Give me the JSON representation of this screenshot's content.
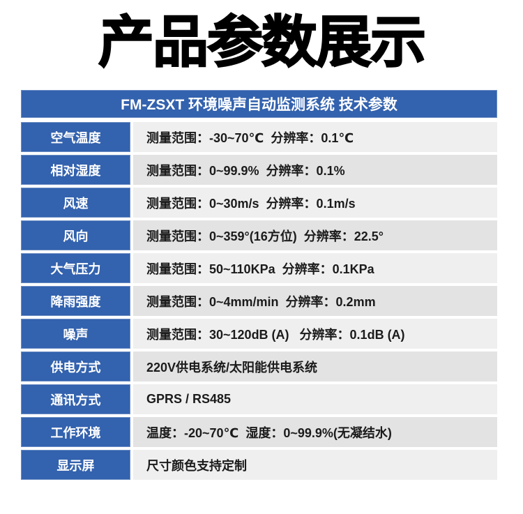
{
  "page": {
    "title": "产品参数展示"
  },
  "table": {
    "header": "FM-ZSXT 环境噪声自动监测系统 技术参数",
    "rows": [
      {
        "label": "空气温度",
        "value": "测量范围：-30~70℃  分辨率：0.1℃"
      },
      {
        "label": "相对湿度",
        "value": "测量范围：0~99.9%  分辨率：0.1%"
      },
      {
        "label": "风速",
        "value": "测量范围：0~30m/s  分辨率：0.1m/s"
      },
      {
        "label": "风向",
        "value": "测量范围：0~359°(16方位)  分辨率：22.5°"
      },
      {
        "label": "大气压力",
        "value": "测量范围：50~110KPa  分辨率：0.1KPa"
      },
      {
        "label": "降雨强度",
        "value": "测量范围：0~4mm/min  分辨率：0.2mm"
      },
      {
        "label": "噪声",
        "value": "测量范围：30~120dB (A)   分辨率：0.1dB (A)"
      },
      {
        "label": "供电方式",
        "value": "220V供电系统/太阳能供电系统"
      },
      {
        "label": "通讯方式",
        "value": "GPRS / RS485"
      },
      {
        "label": "工作环境",
        "value": "温度：-20~70℃  湿度：0~99.9%(无凝结水)"
      },
      {
        "label": "显示屏",
        "value": "尺寸颜色支持定制"
      }
    ]
  },
  "colors": {
    "brand_blue": "#3362ae",
    "row_gray_dark": "#e3e3e3",
    "row_gray_light": "#efefef",
    "title_black": "#000000",
    "header_text": "#ffffff"
  }
}
